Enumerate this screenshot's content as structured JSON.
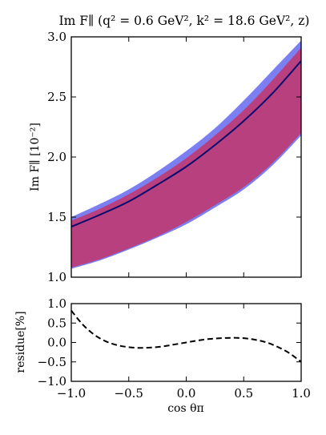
{
  "title": "Im F∥ (q² = 0.6 GeV², k² = 18.6 GeV², z)",
  "chart_data": [
    {
      "type": "area",
      "ylabel": "Im F∥ [10⁻²]",
      "xlabel": "",
      "xlim": [
        -1.0,
        1.0
      ],
      "ylim": [
        1.0,
        3.0
      ],
      "xticks": [
        "−1.0",
        "−0.5",
        "0.0",
        "0.5",
        "1.0"
      ],
      "yticks": [
        "1.0",
        "1.5",
        "2.0",
        "2.5",
        "3.0"
      ],
      "x": [
        -1.0,
        -0.75,
        -0.5,
        -0.25,
        0.0,
        0.25,
        0.5,
        0.75,
        1.0
      ],
      "central": [
        1.42,
        1.52,
        1.63,
        1.77,
        1.92,
        2.1,
        2.3,
        2.53,
        2.8
      ],
      "outer_band": {
        "color": "#7b7ff2",
        "lower": [
          1.07,
          1.14,
          1.23,
          1.33,
          1.44,
          1.58,
          1.73,
          1.93,
          2.18
        ],
        "upper": [
          1.5,
          1.61,
          1.73,
          1.88,
          2.05,
          2.24,
          2.47,
          2.72,
          2.97
        ]
      },
      "inner_band": {
        "color": "#b8407e",
        "lower": [
          1.08,
          1.15,
          1.24,
          1.34,
          1.46,
          1.6,
          1.75,
          1.95,
          2.2
        ],
        "upper": [
          1.47,
          1.57,
          1.69,
          1.83,
          1.99,
          2.18,
          2.39,
          2.64,
          2.91
        ]
      },
      "line_color": "#0a0a6e",
      "grid": false
    },
    {
      "type": "line",
      "ylabel": "residue[%]",
      "xlabel": "cos θπ",
      "xlim": [
        -1.0,
        1.0
      ],
      "ylim": [
        -1.0,
        1.0
      ],
      "xticks": [
        "−1.0",
        "−0.5",
        "0.0",
        "0.5",
        "1.0"
      ],
      "yticks": [
        "−1.0",
        "−0.5",
        "0.0",
        "0.5",
        "1.0"
      ],
      "x": [
        -1.0,
        -0.9,
        -0.8,
        -0.7,
        -0.6,
        -0.5,
        -0.4,
        -0.3,
        -0.2,
        -0.1,
        0.0,
        0.1,
        0.2,
        0.3,
        0.4,
        0.5,
        0.6,
        0.7,
        0.8,
        0.9,
        1.0
      ],
      "y": [
        0.82,
        0.46,
        0.2,
        0.03,
        -0.07,
        -0.12,
        -0.14,
        -0.13,
        -0.1,
        -0.05,
        0.0,
        0.05,
        0.09,
        0.11,
        0.12,
        0.11,
        0.07,
        0.0,
        -0.12,
        -0.28,
        -0.5
      ],
      "line_style": "dashed",
      "line_color": "#000000",
      "grid": false
    }
  ]
}
